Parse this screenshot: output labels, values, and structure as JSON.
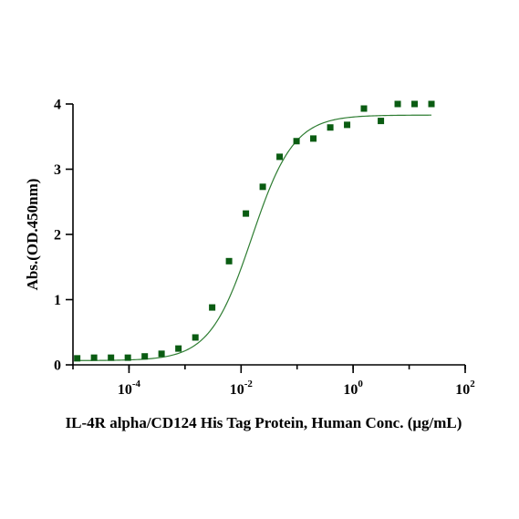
{
  "chart_data": {
    "type": "scatter",
    "xlabel": "IL-4R alpha/CD124 His Tag Protein, Human Conc. (μg/mL)",
    "ylabel": "Abs.(OD.450nm)",
    "x_scale": "log10",
    "xlim": [
      1e-05,
      100
    ],
    "ylim": [
      0,
      4
    ],
    "x_ticks": [
      {
        "value": 0.0001,
        "base": "10",
        "exp": "-4"
      },
      {
        "value": 0.01,
        "base": "10",
        "exp": "-2"
      },
      {
        "value": 1,
        "base": "10",
        "exp": "0"
      },
      {
        "value": 100,
        "base": "10",
        "exp": "2"
      }
    ],
    "y_ticks": [
      "0",
      "1",
      "2",
      "3",
      "4"
    ],
    "grid": false,
    "legend": "none",
    "colors": {
      "points": "#0a5c12",
      "curve": "#2e7d32"
    },
    "series": [
      {
        "marker": "square",
        "x": [
          1.19e-05,
          2.38e-05,
          4.77e-05,
          9.54e-05,
          0.000191,
          0.000381,
          0.000763,
          0.00153,
          0.00305,
          0.0061,
          0.0122,
          0.0244,
          0.0488,
          0.0977,
          0.195,
          0.391,
          0.781,
          1.56,
          3.13,
          6.25,
          12.5,
          25
        ],
        "y": [
          0.1,
          0.11,
          0.11,
          0.11,
          0.13,
          0.17,
          0.25,
          0.42,
          0.88,
          1.59,
          2.32,
          2.73,
          3.19,
          3.43,
          3.47,
          3.64,
          3.68,
          3.93,
          3.74,
          4.0,
          4.0,
          4.0
        ]
      }
    ],
    "fit_curve": {
      "model": "4PL",
      "bottom": 0.065,
      "top": 3.83,
      "ec50": 0.0155,
      "hill": 1.16
    }
  }
}
